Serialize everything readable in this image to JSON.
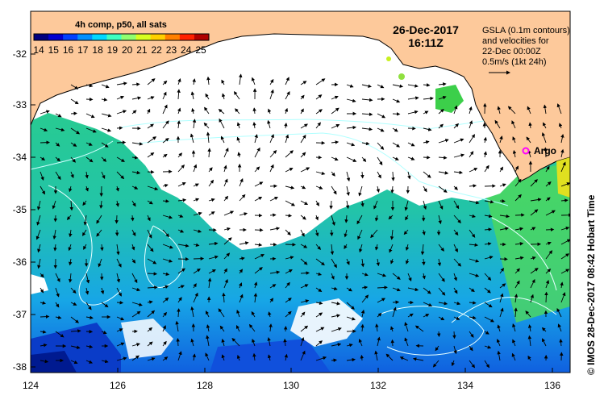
{
  "map": {
    "date": "26-Dec-2017",
    "time": "16:11Z",
    "legend_title": "4h comp, p50, all sats",
    "colorbar_ticks": [
      "14",
      "15",
      "16",
      "17",
      "18",
      "19",
      "20",
      "21",
      "22",
      "23",
      "24",
      "25"
    ],
    "colorbar_colors": [
      "#00007f",
      "#0000d0",
      "#0040ff",
      "#0090ff",
      "#00d8ff",
      "#40ffc0",
      "#90ff70",
      "#d8ff20",
      "#ffd000",
      "#ff8000",
      "#ff2000",
      "#b00000"
    ],
    "gsla_note": [
      "GSLA (0.1m contours)",
      "and velocities for",
      "22-Dec 00:00Z",
      "0.5m/s (1kt 24h)"
    ],
    "argo_label": "Argo",
    "credit": "© IMOS 28-Dec-2017 08:42 Hobart Time",
    "lat_ticks": [
      "-32",
      "-33",
      "-34",
      "-35",
      "-36",
      "-37",
      "-38"
    ],
    "lon_ticks": [
      "124",
      "126",
      "128",
      "130",
      "132",
      "134",
      "136"
    ],
    "colors": {
      "land": "#fdc99b",
      "cloud": "#ffffff",
      "contour": "#b0ffff",
      "argo": "#ff00ff"
    }
  }
}
